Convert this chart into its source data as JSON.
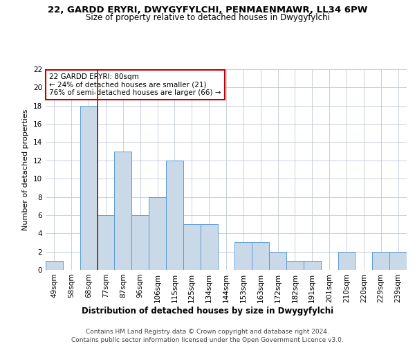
{
  "title1": "22, GARDD ERYRI, DWYGYFYLCHI, PENMAENMAWR, LL34 6PW",
  "title2": "Size of property relative to detached houses in Dwygyfylchi",
  "xlabel": "Distribution of detached houses by size in Dwygyfylchi",
  "ylabel": "Number of detached properties",
  "categories": [
    "49sqm",
    "58sqm",
    "68sqm",
    "77sqm",
    "87sqm",
    "96sqm",
    "106sqm",
    "115sqm",
    "125sqm",
    "134sqm",
    "144sqm",
    "153sqm",
    "163sqm",
    "172sqm",
    "182sqm",
    "191sqm",
    "201sqm",
    "210sqm",
    "220sqm",
    "229sqm",
    "239sqm"
  ],
  "values": [
    1,
    0,
    18,
    6,
    13,
    6,
    8,
    12,
    5,
    5,
    0,
    3,
    3,
    2,
    1,
    1,
    0,
    2,
    0,
    2,
    2
  ],
  "bar_color": "#c9d9e8",
  "bar_edge_color": "#5b9bd5",
  "highlight_line_color": "#c00000",
  "annotation_box_text": "22 GARDD ERYRI: 80sqm\n← 24% of detached houses are smaller (21)\n76% of semi-detached houses are larger (66) →",
  "ylim": [
    0,
    22
  ],
  "yticks": [
    0,
    2,
    4,
    6,
    8,
    10,
    12,
    14,
    16,
    18,
    20,
    22
  ],
  "footnote1": "Contains HM Land Registry data © Crown copyright and database right 2024.",
  "footnote2": "Contains public sector information licensed under the Open Government Licence v3.0.",
  "background_color": "#ffffff",
  "grid_color": "#c0c8d8",
  "title1_fontsize": 9.5,
  "title2_fontsize": 8.5,
  "xlabel_fontsize": 8.5,
  "ylabel_fontsize": 8,
  "tick_fontsize": 7.5,
  "annotation_fontsize": 7.5,
  "footnote_fontsize": 6.5
}
